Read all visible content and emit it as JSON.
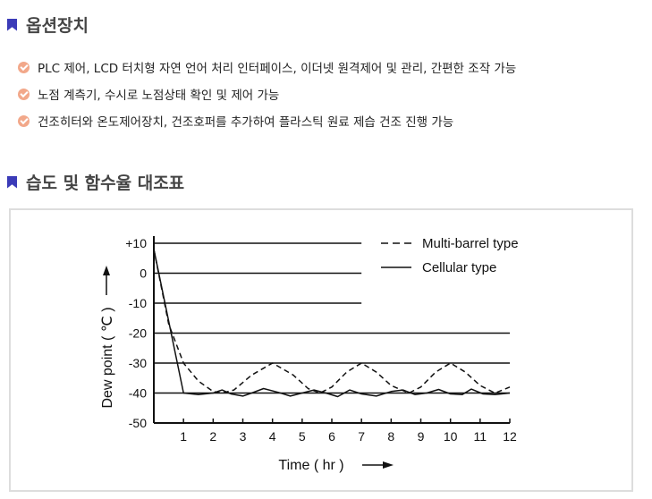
{
  "section1": {
    "title": "옵션장치",
    "items": [
      "PLC 제어, LCD 터치형 자연 언어 처리 인터페이스, 이더넷 원격제어 및 관리, 간편한 조작 가능",
      "노점 계측기, 수시로 노점상태 확인 및 제어 가능",
      "건조히터와 온도제어장치, 건조호퍼를 추가하여 플라스틱 원료 제습 건조 진행 가능"
    ]
  },
  "section2": {
    "title": "습도 및 함수율 대조표"
  },
  "colors": {
    "accent": "#3b3bb8",
    "check": "#f2a88a"
  },
  "chart_data": {
    "type": "line",
    "xlabel": "Time ( hr )",
    "ylabel": "Dew point ( ℃ )",
    "xlim": [
      0,
      12
    ],
    "ylim": [
      -50,
      10
    ],
    "xticks": [
      "1",
      "2",
      "3",
      "4",
      "5",
      "6",
      "7",
      "8",
      "9",
      "10",
      "11",
      "12"
    ],
    "yticks": [
      "+10",
      "0",
      "-10",
      "-20",
      "-30",
      "-40",
      "-50"
    ],
    "gridlines": [
      {
        "y": 10,
        "x_end": 7
      },
      {
        "y": 0,
        "x_end": 7
      },
      {
        "y": -10,
        "x_end": 7
      },
      {
        "y": -20,
        "x_end": 12
      },
      {
        "y": -30,
        "x_end": 12
      },
      {
        "y": -40,
        "x_end": 12
      }
    ],
    "legend_position": "top-right",
    "series": [
      {
        "name": "Multi-barrel type",
        "style": "dashed",
        "points": [
          [
            0,
            8
          ],
          [
            0.5,
            -17
          ],
          [
            1,
            -30
          ],
          [
            1.5,
            -36
          ],
          [
            2,
            -39.5
          ],
          [
            2.3,
            -40
          ],
          [
            2.7,
            -39
          ],
          [
            3.3,
            -34
          ],
          [
            4,
            -30
          ],
          [
            4.7,
            -34
          ],
          [
            5.2,
            -38.5
          ],
          [
            5.6,
            -40
          ],
          [
            6,
            -38
          ],
          [
            6.5,
            -33
          ],
          [
            7,
            -30
          ],
          [
            7.5,
            -33
          ],
          [
            8,
            -37.5
          ],
          [
            8.6,
            -40
          ],
          [
            9,
            -38
          ],
          [
            9.5,
            -33
          ],
          [
            10,
            -30
          ],
          [
            10.5,
            -33
          ],
          [
            11,
            -37.5
          ],
          [
            11.5,
            -40
          ],
          [
            12,
            -38
          ]
        ]
      },
      {
        "name": "Cellular type",
        "style": "solid",
        "points": [
          [
            0,
            8
          ],
          [
            1,
            -40
          ],
          [
            1.5,
            -40.5
          ],
          [
            2,
            -40
          ],
          [
            2.3,
            -39
          ],
          [
            2.6,
            -40.3
          ],
          [
            3,
            -41
          ],
          [
            3.3,
            -40
          ],
          [
            3.7,
            -38.5
          ],
          [
            4.2,
            -39.8
          ],
          [
            4.6,
            -41
          ],
          [
            5,
            -40
          ],
          [
            5.4,
            -39
          ],
          [
            5.8,
            -40
          ],
          [
            6.2,
            -41.2
          ],
          [
            6.6,
            -39
          ],
          [
            7,
            -40.3
          ],
          [
            7.5,
            -41
          ],
          [
            8,
            -39.5
          ],
          [
            8.4,
            -39
          ],
          [
            8.8,
            -40.5
          ],
          [
            9.2,
            -40
          ],
          [
            9.6,
            -38.8
          ],
          [
            10,
            -40.3
          ],
          [
            10.4,
            -40.5
          ],
          [
            10.7,
            -38.7
          ],
          [
            11.1,
            -40.3
          ],
          [
            11.5,
            -40.5
          ],
          [
            12,
            -40
          ]
        ]
      }
    ]
  }
}
